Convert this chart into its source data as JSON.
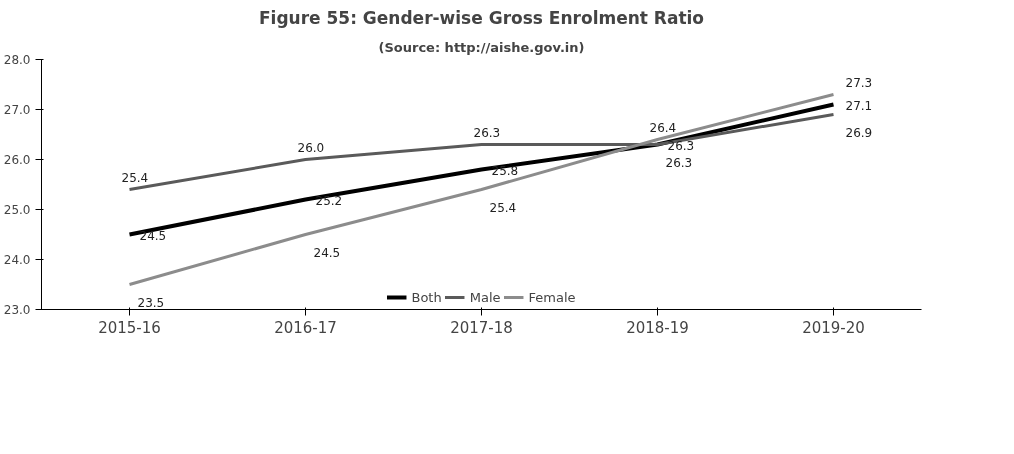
{
  "chart_data": {
    "type": "line",
    "title": "Figure 55: Gender-wise Gross Enrolment Ratio",
    "annotations": [
      "(Source: http://aishe.gov.in)"
    ],
    "categories": [
      "2015-16",
      "2016-17",
      "2017-18",
      "2018-19",
      "2019-20"
    ],
    "series": [
      {
        "name": "Both",
        "color": "#000000",
        "values": [
          24.5,
          25.2,
          25.8,
          26.3,
          27.1
        ],
        "value_labels": [
          "24.5",
          "25.2",
          "25.8",
          "26.3",
          "27.1"
        ]
      },
      {
        "name": "Male",
        "color": "#5a5a5a",
        "values": [
          25.4,
          26.0,
          26.3,
          26.3,
          26.9
        ],
        "value_labels": [
          "25.4",
          "26.0",
          "26.3",
          "26.3",
          "26.9"
        ]
      },
      {
        "name": "Female",
        "color": "#8c8c8c",
        "values": [
          23.5,
          24.5,
          25.4,
          26.4,
          27.3
        ],
        "value_labels": [
          "23.5",
          "24.5",
          "25.4",
          "26.4",
          "27.3"
        ]
      }
    ],
    "ylim": [
      23,
      28
    ],
    "yticks": [
      {
        "value": 23,
        "label": "23.0"
      },
      {
        "value": 24,
        "label": "24.0"
      },
      {
        "value": 25,
        "label": "25.0"
      },
      {
        "value": 26,
        "label": "26.0"
      },
      {
        "value": 27,
        "label": "27.0"
      },
      {
        "value": 28,
        "label": "28.0"
      }
    ],
    "grid": false,
    "legend": "bottom",
    "marker": "none",
    "line_style": "solid"
  }
}
